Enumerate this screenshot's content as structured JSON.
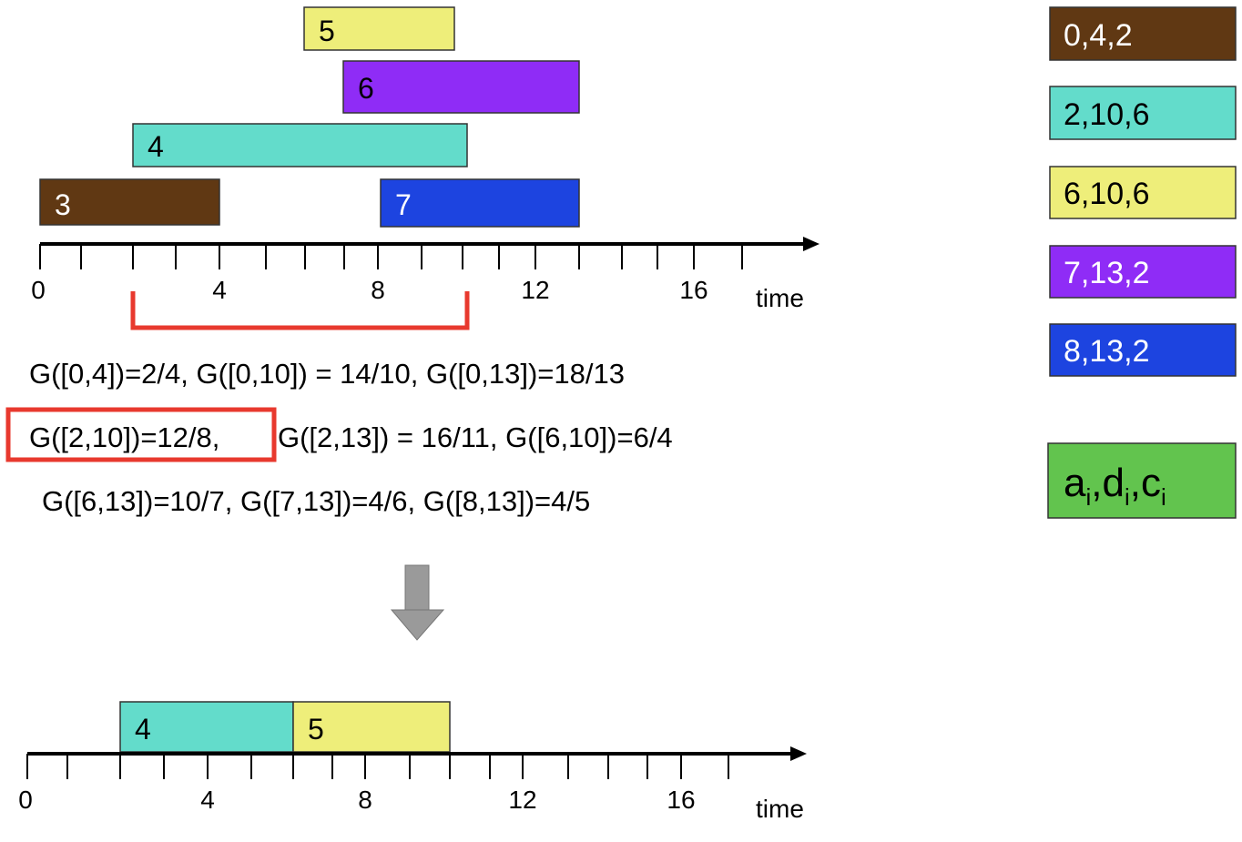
{
  "top_chart": {
    "jobs": [
      "5",
      "6",
      "4",
      "3",
      "7"
    ],
    "axis_labels": [
      "0",
      "4",
      "8",
      "12",
      "16"
    ],
    "axis_title": "time"
  },
  "formulas": [
    "G([0,4])=2/4, G([0,10]) = 14/10, G([0,13])=18/13",
    "G([2,10])=12/8,",
    "G([2,13]) = 16/11, G([6,10])=6/4",
    "G([6,13])=10/7, G([7,13])=4/6, G([8,13])=4/5"
  ],
  "bottom_chart": {
    "jobs": [
      "4",
      "5"
    ],
    "axis_labels": [
      "0",
      "4",
      "8",
      "12",
      "16"
    ],
    "axis_title": "time"
  },
  "legend": [
    "0,4,2",
    "2,10,6",
    "6,10,6",
    "7,13,2",
    "8,13,2"
  ],
  "key": {
    "letters": [
      "a",
      "d",
      "c"
    ],
    "subscript": "i",
    "separator": ","
  }
}
